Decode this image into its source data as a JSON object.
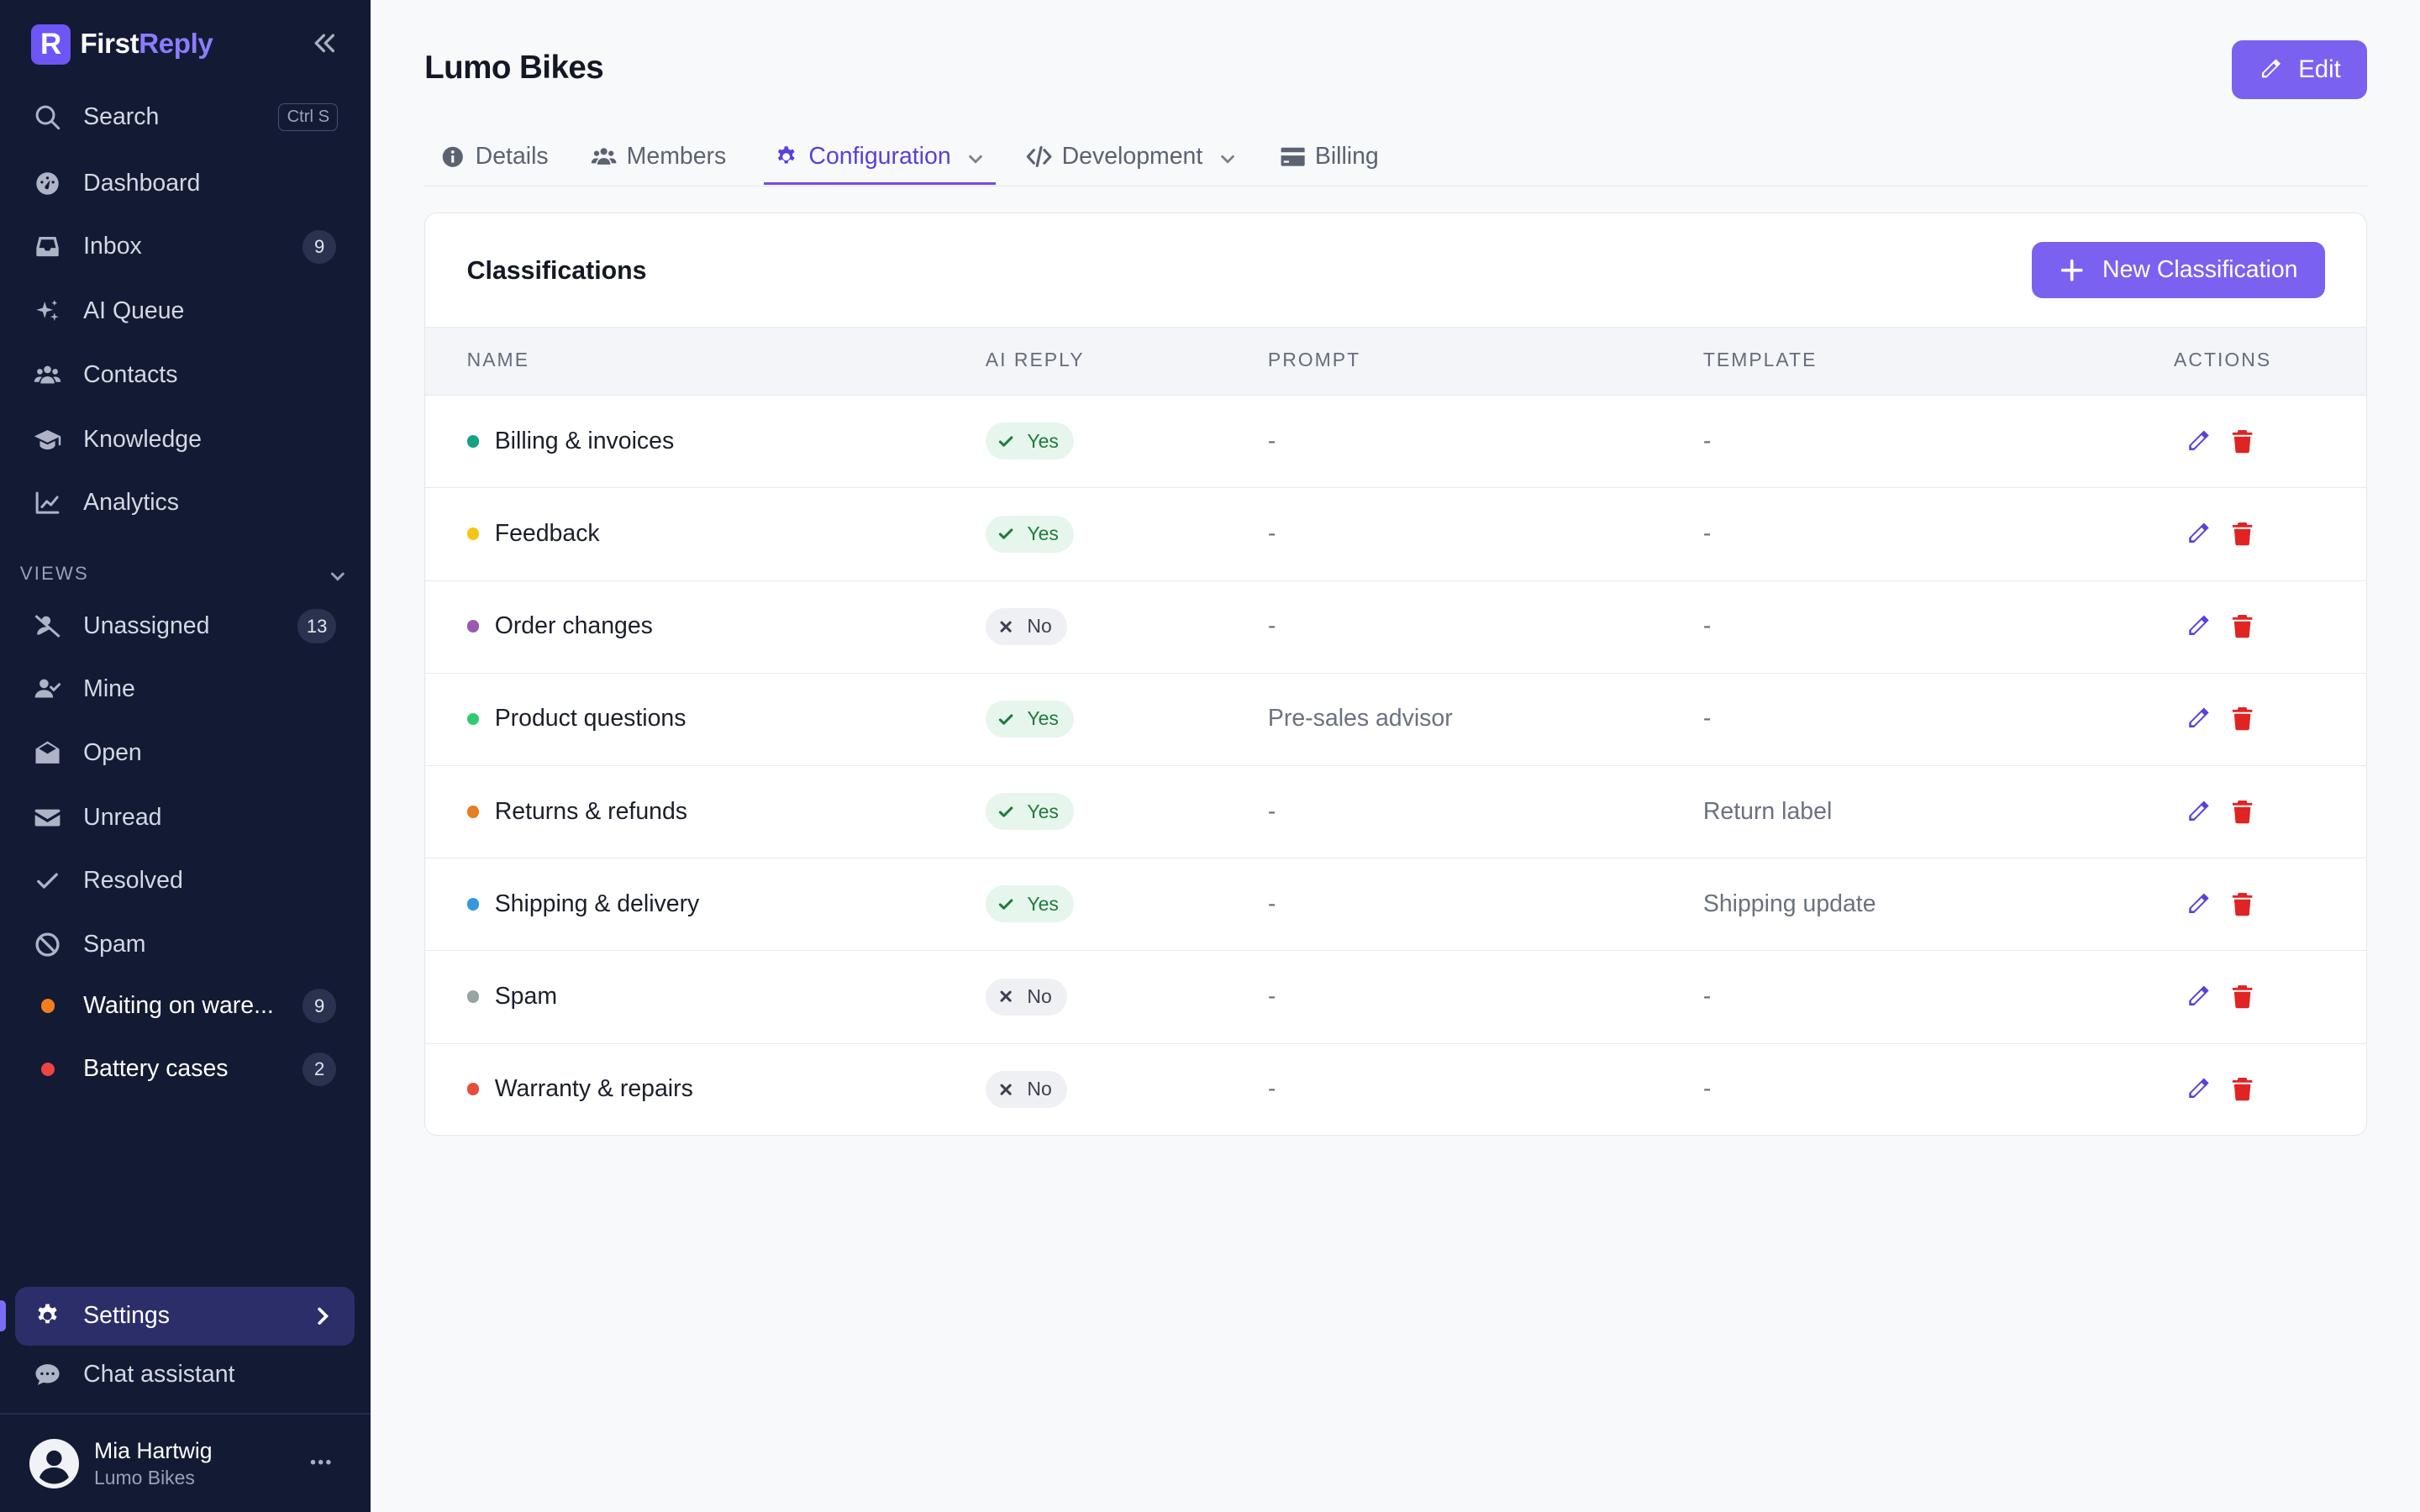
{
  "brand": {
    "name_main": "First",
    "name_accent": "Reply",
    "logo_letter": "R"
  },
  "sidebar": {
    "search_label": "Search",
    "search_shortcut": "Ctrl S",
    "nav": [
      {
        "label": "Dashboard",
        "icon": "dashboard-icon"
      },
      {
        "label": "Inbox",
        "icon": "inbox-icon",
        "badge": "9"
      },
      {
        "label": "AI Queue",
        "icon": "sparkles-icon"
      },
      {
        "label": "Contacts",
        "icon": "users-icon"
      },
      {
        "label": "Knowledge",
        "icon": "graduation-cap-icon"
      },
      {
        "label": "Analytics",
        "icon": "chart-line-icon"
      }
    ],
    "views_label": "VIEWS",
    "views": [
      {
        "label": "Unassigned",
        "icon": "user-slash-icon",
        "badge": "13"
      },
      {
        "label": "Mine",
        "icon": "user-check-icon"
      },
      {
        "label": "Open",
        "icon": "envelope-open-icon"
      },
      {
        "label": "Unread",
        "icon": "envelope-icon"
      },
      {
        "label": "Resolved",
        "icon": "check-icon"
      },
      {
        "label": "Spam",
        "icon": "ban-icon"
      },
      {
        "label": "Waiting on ware...",
        "dot_color": "#f07f1e",
        "badge": "9"
      },
      {
        "label": "Battery cases",
        "dot_color": "#ef4444",
        "badge": "2"
      }
    ],
    "settings_label": "Settings",
    "chat_label": "Chat assistant",
    "user": {
      "name": "Mia Hartwig",
      "org": "Lumo Bikes"
    }
  },
  "header": {
    "title": "Lumo Bikes",
    "edit_label": "Edit"
  },
  "tabs": [
    {
      "label": "Details"
    },
    {
      "label": "Members"
    },
    {
      "label": "Configuration"
    },
    {
      "label": "Development"
    },
    {
      "label": "Billing"
    }
  ],
  "classifications": {
    "title": "Classifications",
    "new_button": "New Classification",
    "columns": [
      "NAME",
      "AI REPLY",
      "PROMPT",
      "TEMPLATE",
      "ACTIONS"
    ],
    "rows": [
      {
        "name": "Billing & invoices",
        "color": "#16a085",
        "ai": "Yes",
        "prompt": "-",
        "template": "-"
      },
      {
        "name": "Feedback",
        "color": "#f5c518",
        "ai": "Yes",
        "prompt": "-",
        "template": "-"
      },
      {
        "name": "Order changes",
        "color": "#9b59b6",
        "ai": "No",
        "prompt": "-",
        "template": "-"
      },
      {
        "name": "Product questions",
        "color": "#2ecc71",
        "ai": "Yes",
        "prompt": "Pre-sales advisor",
        "template": "-"
      },
      {
        "name": "Returns & refunds",
        "color": "#e67e22",
        "ai": "Yes",
        "prompt": "-",
        "template": "Return label"
      },
      {
        "name": "Shipping & delivery",
        "color": "#3498db",
        "ai": "Yes",
        "prompt": "-",
        "template": "Shipping update"
      },
      {
        "name": "Spam",
        "color": "#95a5a6",
        "ai": "No",
        "prompt": "-",
        "template": "-"
      },
      {
        "name": "Warranty & repairs",
        "color": "#e74c3c",
        "ai": "No",
        "prompt": "-",
        "template": "-"
      }
    ]
  },
  "colors": {
    "accent": "#7b61f0",
    "sidebar_bg": "#131a33",
    "yes_green": "#1f7a3d",
    "delete_red": "#e02424"
  }
}
